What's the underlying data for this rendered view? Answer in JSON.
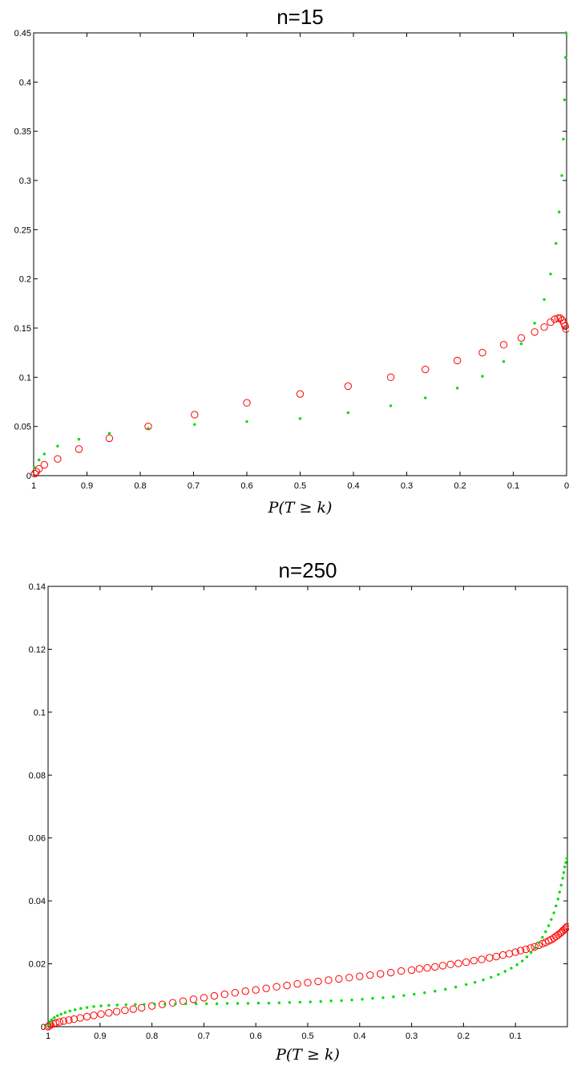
{
  "chart_data": [
    {
      "type": "scatter",
      "title": "n=15",
      "xlabel": "P(T ≥ k)",
      "ylabel": "",
      "x_reversed": true,
      "xlim": [
        1,
        0
      ],
      "ylim": [
        0,
        0.45
      ],
      "xticks": [
        "1",
        "0.9",
        "0.8",
        "0.7",
        "0.6",
        "0.5",
        "0.4",
        "0.3",
        "0.2",
        "0.1",
        "0"
      ],
      "yticks": [
        "0",
        "0.05",
        "0.1",
        "0.15",
        "0.2",
        "0.25",
        "0.3",
        "0.35",
        "0.4",
        "0.45"
      ],
      "colors": {
        "circles": "#ff0000",
        "dots": "#00dd00"
      },
      "series": [
        {
          "marker": "circle",
          "color": "#ff0000",
          "x": [
            0.998,
            0.995,
            0.99,
            0.98,
            0.955,
            0.915,
            0.858,
            0.785,
            0.698,
            0.6,
            0.5,
            0.41,
            0.33,
            0.265,
            0.205,
            0.158,
            0.118,
            0.085,
            0.06,
            0.042,
            0.03,
            0.022,
            0.016,
            0.012,
            0.008,
            0.005,
            0.003,
            0.001
          ],
          "y": [
            0.002,
            0.004,
            0.007,
            0.011,
            0.017,
            0.027,
            0.038,
            0.05,
            0.062,
            0.074,
            0.083,
            0.091,
            0.1,
            0.108,
            0.117,
            0.125,
            0.133,
            0.14,
            0.146,
            0.151,
            0.156,
            0.159,
            0.16,
            0.16,
            0.158,
            0.155,
            0.152,
            0.149
          ]
        },
        {
          "marker": "dot",
          "color": "#00dd00",
          "x": [
            0.998,
            0.99,
            0.98,
            0.955,
            0.915,
            0.858,
            0.785,
            0.698,
            0.6,
            0.5,
            0.41,
            0.33,
            0.265,
            0.205,
            0.158,
            0.118,
            0.085,
            0.06,
            0.042,
            0.03,
            0.02,
            0.014,
            0.009,
            0.006,
            0.004,
            0.002,
            0.001
          ],
          "y": [
            0.008,
            0.016,
            0.022,
            0.03,
            0.037,
            0.043,
            0.048,
            0.052,
            0.055,
            0.058,
            0.064,
            0.071,
            0.079,
            0.089,
            0.101,
            0.116,
            0.134,
            0.155,
            0.179,
            0.205,
            0.236,
            0.268,
            0.305,
            0.342,
            0.382,
            0.425,
            0.45
          ]
        }
      ]
    },
    {
      "type": "scatter",
      "title": "n=250",
      "xlabel": "P(T ≥ k)",
      "ylabel": "",
      "x_reversed": true,
      "xlim": [
        1,
        0
      ],
      "ylim": [
        0,
        0.14
      ],
      "xticks": [
        "1",
        "0.9",
        "0.8",
        "0.7",
        "0.6",
        "0.5",
        "0.4",
        "0.3",
        "0.2",
        "0.1"
      ],
      "yticks": [
        "0",
        "0.02",
        "0.04",
        "0.06",
        "0.08",
        "0.1",
        "0.12",
        "0.14"
      ],
      "colors": {
        "circles": "#ff0000",
        "dots": "#00dd00"
      },
      "series": [
        {
          "marker": "circle",
          "color": "#ff0000",
          "x": [
            1.0,
            0.998,
            0.995,
            0.99,
            0.985,
            0.978,
            0.97,
            0.96,
            0.95,
            0.938,
            0.925,
            0.912,
            0.898,
            0.883,
            0.868,
            0.852,
            0.836,
            0.82,
            0.8,
            0.78,
            0.76,
            0.74,
            0.72,
            0.7,
            0.68,
            0.66,
            0.64,
            0.62,
            0.6,
            0.58,
            0.56,
            0.54,
            0.52,
            0.5,
            0.48,
            0.46,
            0.44,
            0.42,
            0.4,
            0.38,
            0.36,
            0.34,
            0.32,
            0.3,
            0.285,
            0.27,
            0.255,
            0.24,
            0.225,
            0.21,
            0.195,
            0.18,
            0.165,
            0.15,
            0.137,
            0.124,
            0.112,
            0.1,
            0.09,
            0.08,
            0.071,
            0.063,
            0.055,
            0.048,
            0.042,
            0.036,
            0.031,
            0.026,
            0.022,
            0.018,
            0.014,
            0.011,
            0.008,
            0.005,
            0.003,
            0.001
          ],
          "y": [
            0.0,
            0.0003,
            0.0006,
            0.0009,
            0.0012,
            0.0015,
            0.0018,
            0.0021,
            0.0024,
            0.0028,
            0.0032,
            0.0036,
            0.004,
            0.0044,
            0.0048,
            0.0052,
            0.0056,
            0.006,
            0.0066,
            0.0071,
            0.0076,
            0.0081,
            0.0087,
            0.0092,
            0.0098,
            0.0103,
            0.0108,
            0.0113,
            0.0117,
            0.0122,
            0.0127,
            0.0131,
            0.0136,
            0.014,
            0.0144,
            0.0148,
            0.0152,
            0.0156,
            0.016,
            0.0164,
            0.0168,
            0.0172,
            0.0177,
            0.018,
            0.0184,
            0.0187,
            0.019,
            0.0194,
            0.0198,
            0.0201,
            0.0205,
            0.021,
            0.0214,
            0.0219,
            0.0223,
            0.0228,
            0.0232,
            0.0237,
            0.0242,
            0.0246,
            0.025,
            0.0254,
            0.0259,
            0.0264,
            0.0268,
            0.0273,
            0.0277,
            0.0282,
            0.0287,
            0.0292,
            0.0297,
            0.0301,
            0.0306,
            0.031,
            0.0314,
            0.0318
          ]
        },
        {
          "marker": "dot",
          "color": "#00dd00",
          "x": [
            1.0,
            0.997,
            0.993,
            0.988,
            0.982,
            0.975,
            0.967,
            0.958,
            0.948,
            0.937,
            0.925,
            0.912,
            0.898,
            0.883,
            0.867,
            0.85,
            0.832,
            0.815,
            0.795,
            0.775,
            0.755,
            0.735,
            0.715,
            0.695,
            0.675,
            0.655,
            0.635,
            0.615,
            0.595,
            0.575,
            0.555,
            0.535,
            0.515,
            0.495,
            0.475,
            0.455,
            0.435,
            0.415,
            0.395,
            0.375,
            0.355,
            0.335,
            0.315,
            0.295,
            0.275,
            0.255,
            0.235,
            0.215,
            0.195,
            0.178,
            0.162,
            0.147,
            0.133,
            0.12,
            0.108,
            0.097,
            0.087,
            0.078,
            0.07,
            0.062,
            0.055,
            0.048,
            0.042,
            0.036,
            0.031,
            0.026,
            0.022,
            0.018,
            0.015,
            0.012,
            0.009,
            0.007,
            0.005,
            0.003,
            0.001
          ],
          "y": [
            0.0005,
            0.0015,
            0.0022,
            0.0029,
            0.0035,
            0.004,
            0.0045,
            0.005,
            0.0054,
            0.0058,
            0.0061,
            0.0064,
            0.0066,
            0.0068,
            0.0069,
            0.007,
            0.0071,
            0.0071,
            0.0072,
            0.0072,
            0.0072,
            0.0073,
            0.0073,
            0.0073,
            0.0073,
            0.0074,
            0.0074,
            0.0074,
            0.0075,
            0.0075,
            0.0076,
            0.0077,
            0.0078,
            0.0079,
            0.008,
            0.0082,
            0.0083,
            0.0085,
            0.0087,
            0.009,
            0.0092,
            0.0095,
            0.0099,
            0.0103,
            0.0108,
            0.0113,
            0.0119,
            0.0126,
            0.0134,
            0.0141,
            0.0149,
            0.0157,
            0.0166,
            0.0176,
            0.0186,
            0.0197,
            0.0209,
            0.0222,
            0.0236,
            0.0251,
            0.0267,
            0.0284,
            0.0302,
            0.0321,
            0.0341,
            0.0362,
            0.0384,
            0.0406,
            0.0428,
            0.045,
            0.0472,
            0.049,
            0.0508,
            0.0522,
            0.0535
          ]
        }
      ]
    }
  ]
}
